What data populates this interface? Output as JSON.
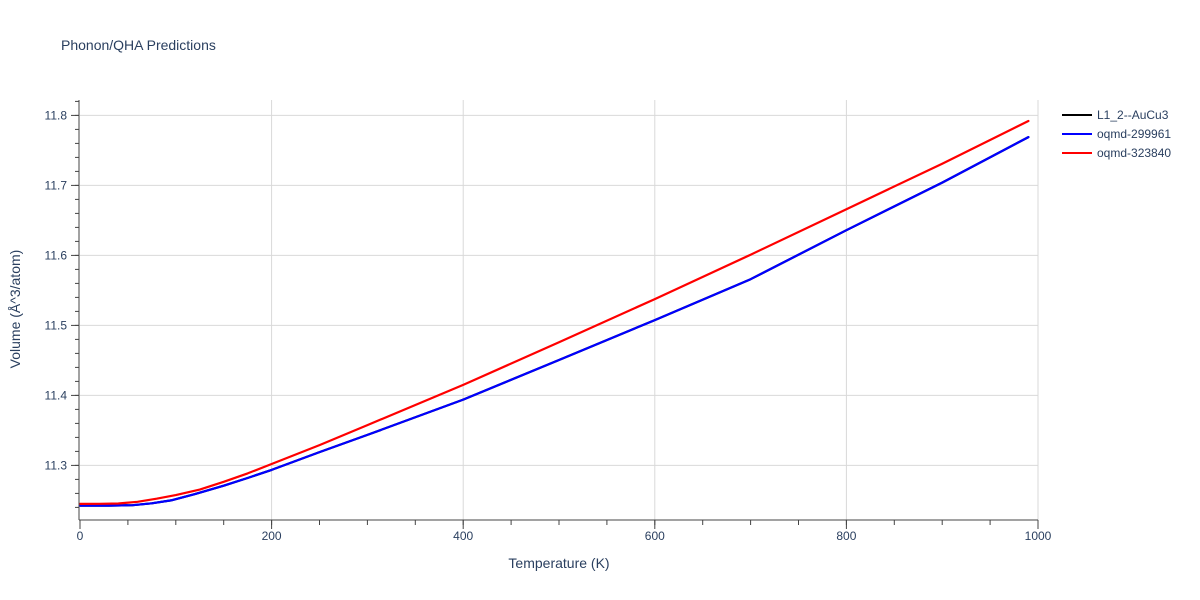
{
  "chart_data": {
    "type": "line",
    "title": "Phonon/QHA Predictions",
    "xlabel": "Temperature (K)",
    "ylabel": "Volume (Å^3/atom)",
    "xlim": [
      0,
      1000
    ],
    "ylim": [
      11.222,
      11.822
    ],
    "x_ticks": [
      0,
      200,
      400,
      600,
      800,
      1000
    ],
    "y_ticks": [
      11.3,
      11.4,
      11.5,
      11.6,
      11.7,
      11.8
    ],
    "x_tick_labels": [
      "0",
      "200",
      "400",
      "600",
      "800",
      "1000"
    ],
    "y_tick_labels": [
      "11.3",
      "11.4",
      "11.5",
      "11.6",
      "11.7",
      "11.8"
    ],
    "grid": true,
    "legend_position": "top-right outside",
    "series": [
      {
        "name": "L1_2--AuCu3",
        "color": "#000000",
        "x": [
          0,
          30,
          55,
          75,
          95,
          120,
          150,
          175,
          200,
          250,
          300,
          400,
          500,
          600,
          700,
          800,
          900,
          990
        ],
        "y": [
          11.2425,
          11.2426,
          11.2432,
          11.2458,
          11.25,
          11.259,
          11.271,
          11.282,
          11.2935,
          11.319,
          11.3435,
          11.394,
          11.4505,
          11.5075,
          11.566,
          11.636,
          11.704,
          11.769
        ]
      },
      {
        "name": "oqmd-299961",
        "color": "#0000ff",
        "x": [
          0,
          30,
          55,
          75,
          95,
          120,
          150,
          175,
          200,
          250,
          300,
          400,
          500,
          600,
          700,
          800,
          900,
          990
        ],
        "y": [
          11.2425,
          11.2426,
          11.2432,
          11.2458,
          11.25,
          11.259,
          11.271,
          11.282,
          11.2935,
          11.319,
          11.3435,
          11.394,
          11.4505,
          11.5075,
          11.566,
          11.636,
          11.704,
          11.769
        ]
      },
      {
        "name": "oqmd-323840",
        "color": "#ff0000",
        "x": [
          0,
          20,
          40,
          60,
          80,
          100,
          125,
          150,
          175,
          200,
          250,
          300,
          400,
          500,
          600,
          700,
          800,
          900,
          990
        ],
        "y": [
          11.245,
          11.2451,
          11.2456,
          11.248,
          11.2525,
          11.2575,
          11.2655,
          11.2765,
          11.2885,
          11.302,
          11.329,
          11.3575,
          11.415,
          11.476,
          11.5375,
          11.601,
          11.666,
          11.731,
          11.792
        ]
      }
    ]
  }
}
